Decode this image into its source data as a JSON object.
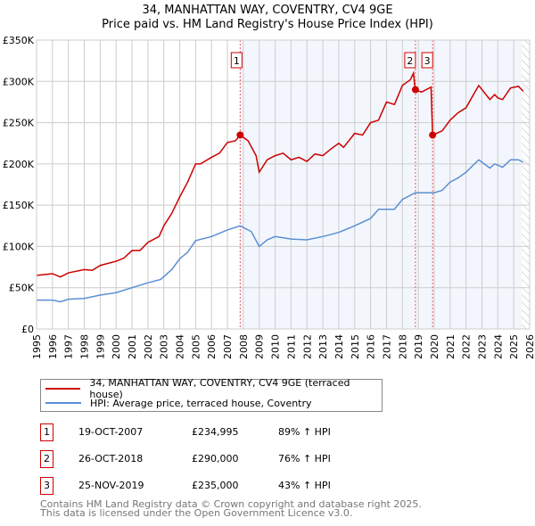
{
  "title": "34, MANHATTAN WAY, COVENTRY, CV4 9GE",
  "subtitle": "Price paid vs. HM Land Registry's House Price Index (HPI)",
  "chart_data": {
    "type": "line",
    "ylim": [
      0,
      350000
    ],
    "xlim": [
      1995,
      2026
    ],
    "yticks": [
      {
        "v": 0,
        "label": "£0"
      },
      {
        "v": 50000,
        "label": "£50K"
      },
      {
        "v": 100000,
        "label": "£100K"
      },
      {
        "v": 150000,
        "label": "£150K"
      },
      {
        "v": 200000,
        "label": "£200K"
      },
      {
        "v": 250000,
        "label": "£250K"
      },
      {
        "v": 300000,
        "label": "£300K"
      },
      {
        "v": 350000,
        "label": "£350K"
      }
    ],
    "xticks": [
      "1995",
      "1996",
      "1997",
      "1998",
      "1999",
      "2000",
      "2001",
      "2002",
      "2003",
      "2004",
      "2005",
      "2006",
      "2007",
      "2008",
      "2009",
      "2010",
      "2011",
      "2012",
      "2013",
      "2014",
      "2015",
      "2016",
      "2017",
      "2018",
      "2019",
      "2020",
      "2021",
      "2022",
      "2023",
      "2024",
      "2025",
      "2026"
    ],
    "shaded_from": 2007.8,
    "hatched_from": 2025.5,
    "series": [
      {
        "name": "34, MANHATTAN WAY, COVENTRY, CV4 9GE (terraced house)",
        "color": "#cc0000",
        "x": [
          1995,
          1996,
          1996.5,
          1997,
          1998,
          1998.5,
          1999,
          2000,
          2000.5,
          2001,
          2001.5,
          2002,
          2002.7,
          2003,
          2003.5,
          2004,
          2004.5,
          2005,
          2005.3,
          2006,
          2006.5,
          2007,
          2007.5,
          2007.8,
          2008.3,
          2008.8,
          2009,
          2009.5,
          2010,
          2010.5,
          2011,
          2011.5,
          2012,
          2012.5,
          2013,
          2013.5,
          2014,
          2014.3,
          2015,
          2015.5,
          2016,
          2016.5,
          2017,
          2017.5,
          2018,
          2018.5,
          2018.7,
          2018.8,
          2019.2,
          2019.8,
          2019.9,
          2020.5,
          2021,
          2021.5,
          2022,
          2022.5,
          2022.8,
          2023.5,
          2023.8,
          2024,
          2024.3,
          2024.8,
          2025.3,
          2025.6
        ],
        "y": [
          65000,
          67000,
          63000,
          68000,
          72000,
          71000,
          77000,
          82000,
          86000,
          95000,
          95000,
          105000,
          112000,
          125000,
          140000,
          160000,
          178000,
          200000,
          200000,
          208000,
          213000,
          226000,
          228000,
          235000,
          228000,
          210000,
          190000,
          205000,
          210000,
          213000,
          205000,
          208000,
          203000,
          212000,
          210000,
          218000,
          225000,
          220000,
          237000,
          235000,
          250000,
          253000,
          275000,
          272000,
          295000,
          302000,
          310000,
          290000,
          287000,
          293000,
          235000,
          240000,
          253000,
          262000,
          268000,
          285000,
          295000,
          278000,
          284000,
          280000,
          278000,
          292000,
          294000,
          288000
        ]
      },
      {
        "name": "HPI: Average price, terraced house, Coventry",
        "color": "#5b8fd4",
        "x": [
          1995,
          1996,
          1996.5,
          1997,
          1998,
          1999,
          2000,
          2001,
          2002,
          2002.8,
          2003.5,
          2004,
          2004.5,
          2005,
          2006,
          2007,
          2007.8,
          2008.5,
          2009,
          2009.5,
          2010,
          2011,
          2012,
          2013,
          2014,
          2015,
          2016,
          2016.5,
          2017.5,
          2018,
          2018.8,
          2019.5,
          2020,
          2020.5,
          2021,
          2021.5,
          2022,
          2022.8,
          2023.5,
          2023.8,
          2024.3,
          2024.8,
          2025.3,
          2025.6
        ],
        "y": [
          35000,
          35000,
          33000,
          36000,
          37000,
          41000,
          44000,
          50000,
          56000,
          60000,
          72000,
          85000,
          93000,
          107000,
          112000,
          120000,
          125000,
          118000,
          100000,
          108000,
          112000,
          109000,
          108000,
          112000,
          117000,
          125000,
          134000,
          145000,
          145000,
          157000,
          165000,
          165000,
          165000,
          168000,
          178000,
          183000,
          190000,
          205000,
          195000,
          200000,
          196000,
          205000,
          205000,
          202000
        ]
      }
    ],
    "sales": [
      {
        "label": "1",
        "x": 2007.8,
        "y": 234995
      },
      {
        "label": "2",
        "x": 2018.82,
        "y": 290000
      },
      {
        "label": "3",
        "x": 2019.9,
        "y": 235000
      }
    ]
  },
  "legend": {
    "items": [
      "34, MANHATTAN WAY, COVENTRY, CV4 9GE (terraced house)",
      "HPI: Average price, terraced house, Coventry"
    ]
  },
  "transactions": [
    {
      "num": "1",
      "date": "19-OCT-2007",
      "price": "£234,995",
      "hpi": "89% ↑ HPI"
    },
    {
      "num": "2",
      "date": "26-OCT-2018",
      "price": "£290,000",
      "hpi": "76% ↑ HPI"
    },
    {
      "num": "3",
      "date": "25-NOV-2019",
      "price": "£235,000",
      "hpi": "43% ↑ HPI"
    }
  ],
  "footer": {
    "line1": "Contains HM Land Registry data © Crown copyright and database right 2025.",
    "line2": "This data is licensed under the Open Government Licence v3.0."
  }
}
